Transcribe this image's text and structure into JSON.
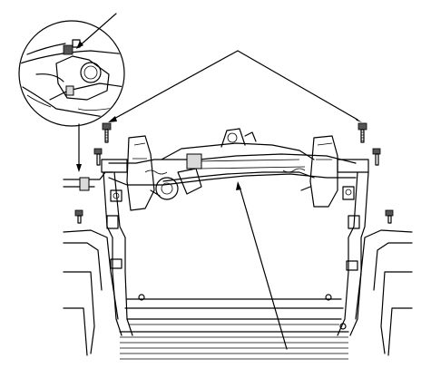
{
  "figure": {
    "description_visible_text": "",
    "colors": {
      "line": "#000000",
      "background": "#ffffff",
      "shade": "#d9d9d9"
    },
    "callouts": [
      {
        "name": "callout-bolt-left"
      },
      {
        "name": "callout-bolt-right"
      },
      {
        "name": "callout-crossmember"
      },
      {
        "name": "callout-detail-inset"
      }
    ],
    "icons": [
      "bolt-icon",
      "detail-magnifier-circle"
    ]
  }
}
